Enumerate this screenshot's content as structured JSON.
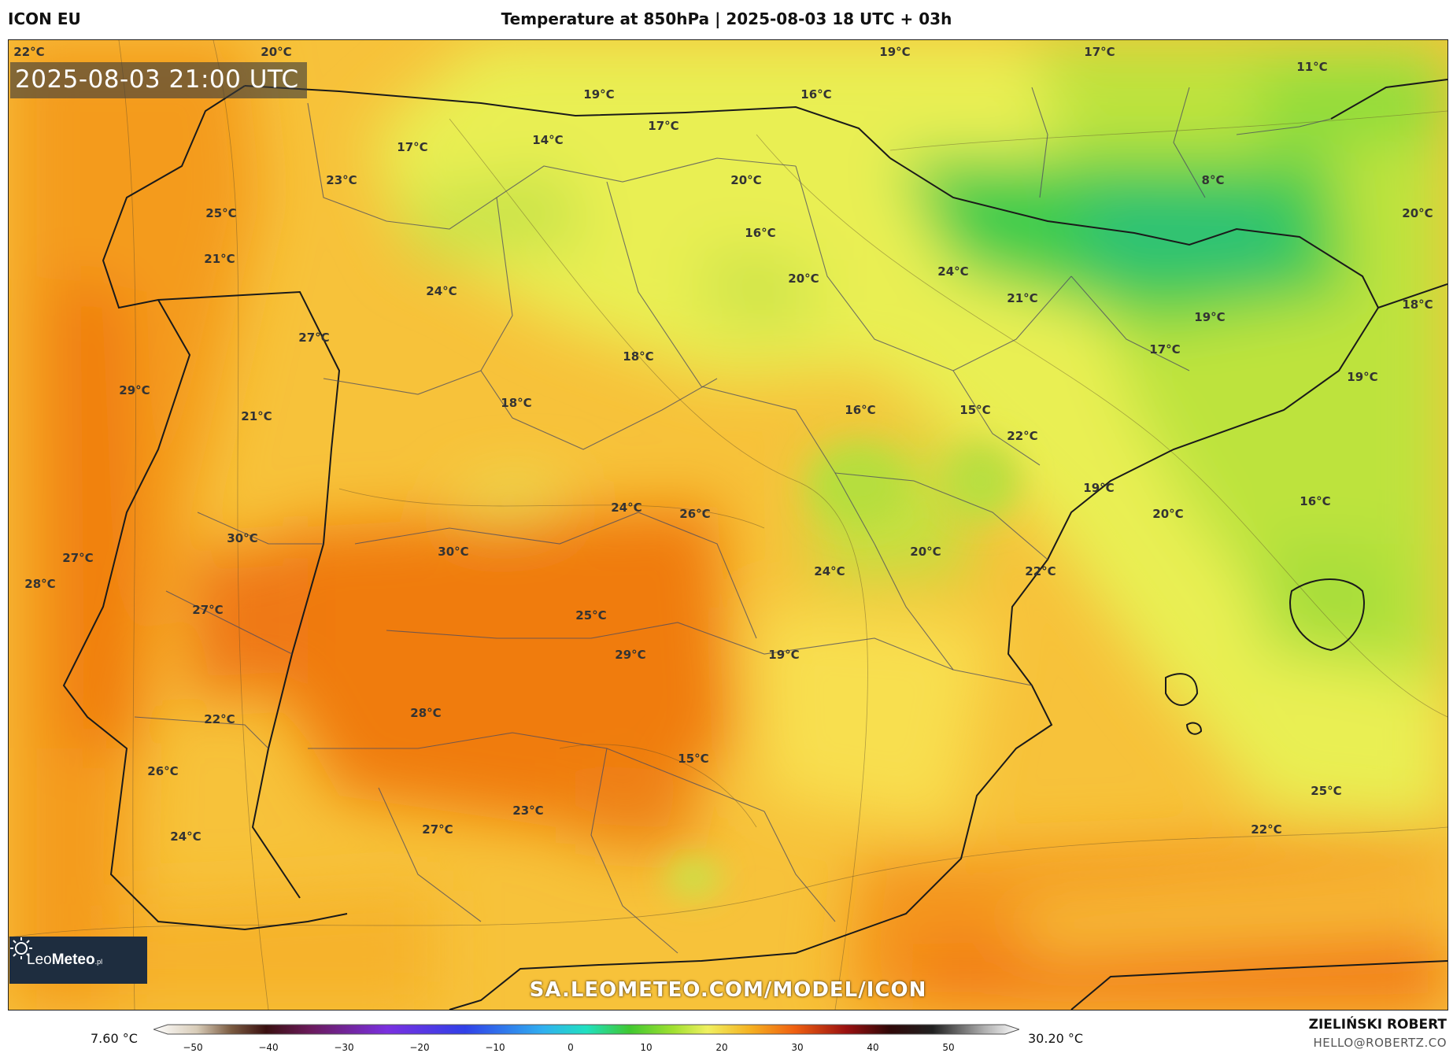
{
  "header": {
    "model": "ICON EU",
    "title": "Temperature at 850hPa | 2025-08-03 18 UTC + 03h"
  },
  "map": {
    "timestamp": "2025-08-03 21:00 UTC",
    "watermark_url": "SA.LEOMETEO.COM/MODEL/ICON",
    "logo": {
      "brand_light": "Leo",
      "brand_bold": "Meteo",
      "suffix": ".pl"
    },
    "labels": [
      "22°C",
      "20°C",
      "19°C",
      "17°C",
      "11°C",
      "19°C",
      "16°C",
      "17°C",
      "17°C",
      "14°C",
      "23°C",
      "20°C",
      "8°C",
      "25°C",
      "20°C",
      "16°C",
      "21°C",
      "20°C",
      "24°C",
      "24°C",
      "21°C",
      "18°C",
      "27°C",
      "19°C",
      "17°C",
      "18°C",
      "19°C",
      "29°C",
      "21°C",
      "18°C",
      "16°C",
      "15°C",
      "22°C",
      "19°C",
      "16°C",
      "20°C",
      "24°C",
      "26°C",
      "30°C",
      "30°C",
      "27°C",
      "20°C",
      "28°C",
      "24°C",
      "22°C",
      "27°C",
      "25°C",
      "29°C",
      "19°C",
      "22°C",
      "28°C",
      "15°C",
      "26°C",
      "25°C",
      "23°C",
      "24°C",
      "27°C",
      "22°C"
    ]
  },
  "legend": {
    "min_value": "7.60 °C",
    "max_value": "30.20 °C",
    "ticks": [
      "−50",
      "−40",
      "−30",
      "−20",
      "−10",
      "0",
      "10",
      "20",
      "30",
      "40",
      "50"
    ]
  },
  "footer": {
    "author": "ZIELIŃSKI ROBERT",
    "email": "HELLO@ROBERTZ.CO"
  }
}
